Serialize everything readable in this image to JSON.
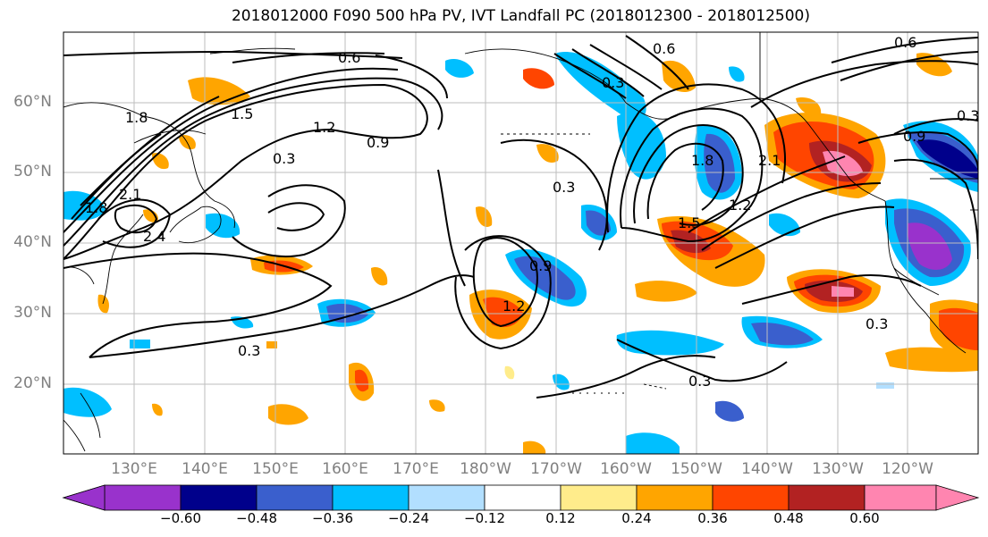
{
  "title": "2018012000 F090 500 hPa PV, IVT Landfall PC (2018012300 - 2018012500)",
  "lat_labels": [
    "60°N",
    "50°N",
    "40°N",
    "30°N",
    "20°N"
  ],
  "lon_labels": [
    "130°E",
    "140°E",
    "150°E",
    "160°E",
    "170°E",
    "180°W",
    "170°W",
    "160°W",
    "150°W",
    "140°W",
    "130°W",
    "120°W"
  ],
  "contour_labels": [
    "0.6",
    "1.8",
    "1.5",
    "1.2",
    "0.9",
    "0.3",
    "2.1",
    "2.4",
    "1.8",
    "0.3",
    "0.3",
    "1.2",
    "0.9",
    "1.8",
    "1.5",
    "2.1",
    "1.2",
    "0.6",
    "0.3",
    "0.3",
    "0.9",
    "0.6",
    "0.3",
    "0.3"
  ],
  "colorbar": {
    "ticks": [
      "−0.60",
      "−0.48",
      "−0.36",
      "−0.24",
      "−0.12",
      "0.12",
      "0.24",
      "0.36",
      "0.48",
      "0.60"
    ],
    "colors": [
      "#9932cc",
      "#00008b",
      "#3a5fcd",
      "#00bfff",
      "#b2dfff",
      "#ffffff",
      "#ffec8b",
      "#ffa500",
      "#ff4500",
      "#b22222",
      "#ff85b0"
    ]
  },
  "palette": {
    "contour": "#000000",
    "grid": "#bebebe",
    "axis_label": "#808080"
  }
}
